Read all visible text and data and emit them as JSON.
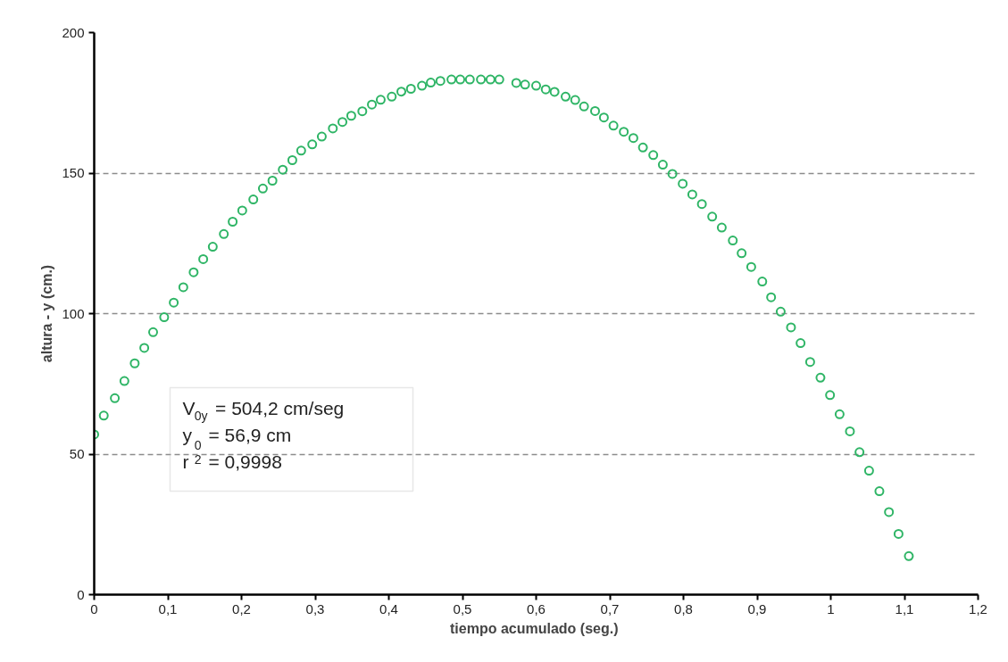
{
  "chart_data": {
    "type": "scatter",
    "xlabel": "tiempo acumulado  (seg.)",
    "ylabel": "altura - y (cm.)",
    "xlim": [
      0,
      1.2
    ],
    "xticks": [
      {
        "value": 0,
        "label": "0"
      },
      {
        "value": 0.1,
        "label": "0,1"
      },
      {
        "value": 0.2,
        "label": "0,2"
      },
      {
        "value": 0.3,
        "label": "0,3"
      },
      {
        "value": 0.4,
        "label": "0,4"
      },
      {
        "value": 0.5,
        "label": "0,5"
      },
      {
        "value": 0.6,
        "label": "0,6"
      },
      {
        "value": 0.7,
        "label": "0,7"
      },
      {
        "value": 0.8,
        "label": "0,8"
      },
      {
        "value": 0.9,
        "label": "0,9"
      },
      {
        "value": 1,
        "label": "1"
      },
      {
        "value": 1.1,
        "label": "1,1"
      },
      {
        "value": 1.2,
        "label": "1,2"
      }
    ],
    "ylim": [
      0,
      200
    ],
    "yticks": [
      0,
      50,
      100,
      150,
      200
    ],
    "grid": "y",
    "marker": "circle",
    "annotations": [
      "V$_{0y}$ = 504,2 cm/seg",
      "y$_{0}$ = 56,9 cm",
      "r$^{2}$ = 0,9998"
    ],
    "series": [
      {
        "color": "#2fb566",
        "x": [
          0.0,
          0.013,
          0.028,
          0.041,
          0.055,
          0.068,
          0.08,
          0.095,
          0.108,
          0.121,
          0.135,
          0.148,
          0.161,
          0.176,
          0.188,
          0.201,
          0.216,
          0.229,
          0.242,
          0.256,
          0.269,
          0.281,
          0.296,
          0.309,
          0.324,
          0.337,
          0.349,
          0.364,
          0.377,
          0.389,
          0.404,
          0.417,
          0.43,
          0.445,
          0.457,
          0.47,
          0.485,
          0.497,
          0.51,
          0.525,
          0.538,
          0.55,
          0.573,
          0.585,
          0.6,
          0.613,
          0.625,
          0.64,
          0.653,
          0.665,
          0.68,
          0.692,
          0.705,
          0.719,
          0.732,
          0.745,
          0.759,
          0.772,
          0.785,
          0.799,
          0.812,
          0.825,
          0.839,
          0.852,
          0.867,
          0.879,
          0.892,
          0.907,
          0.919,
          0.932,
          0.946,
          0.959,
          0.972,
          0.986,
          0.999,
          1.012,
          1.026,
          1.039,
          1.052,
          1.066,
          1.079,
          1.092,
          1.106
        ],
        "values": [
          57.0,
          63.7,
          69.9,
          76.0,
          82.3,
          87.8,
          93.4,
          98.7,
          103.9,
          109.4,
          114.7,
          119.4,
          123.8,
          128.3,
          132.7,
          136.7,
          140.6,
          144.5,
          147.3,
          151.2,
          154.6,
          158.0,
          160.2,
          163.0,
          165.9,
          168.2,
          170.4,
          172.0,
          174.4,
          176.1,
          177.2,
          179.0,
          180.0,
          181.1,
          182.2,
          182.8,
          183.3,
          183.3,
          183.3,
          183.3,
          183.3,
          183.3,
          182.1,
          181.5,
          181.1,
          179.8,
          178.9,
          177.2,
          176.0,
          173.7,
          172.1,
          169.8,
          166.9,
          164.7,
          162.5,
          159.1,
          156.4,
          153.0,
          149.7,
          146.2,
          142.4,
          139.0,
          134.5,
          130.6,
          126.0,
          121.5,
          116.6,
          111.4,
          105.8,
          100.7,
          95.1,
          89.5,
          82.8,
          77.2,
          71.0,
          64.2,
          58.1,
          50.7,
          44.1,
          36.8,
          29.4,
          21.6,
          13.7
        ]
      }
    ]
  }
}
